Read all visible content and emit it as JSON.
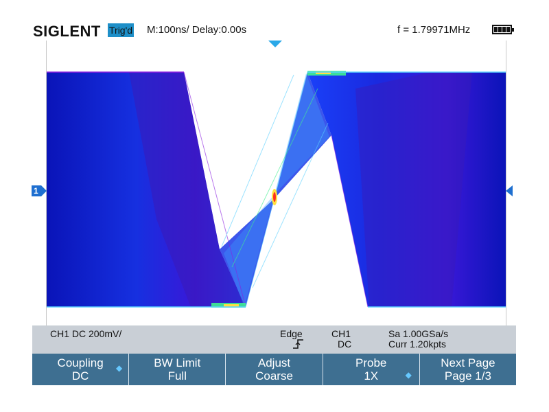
{
  "header": {
    "brand": "SIGLENT",
    "trigger_status": "Trig'd",
    "timebase": "M:100ns/ Delay:0.00s",
    "frequency": "f = 1.79971MHz"
  },
  "screen": {
    "channel_marker": "1",
    "waveform_colors": [
      "#0000a8",
      "#1a3cff",
      "#5ad0ff",
      "#40f090",
      "#ffe040",
      "#ff3020",
      "#8a1fe0"
    ]
  },
  "status_bar": {
    "channel_info": "CH1 DC 200mV/",
    "trigger_type": "Edge",
    "trigger_slope_icon": "rising-edge-icon",
    "trigger_source": "CH1",
    "trigger_coupling": "DC",
    "sample_rate": "Sa 1.00GSa/s",
    "memory_depth": "Curr 1.20kpts"
  },
  "softkeys": [
    {
      "label": "Coupling",
      "value": "DC"
    },
    {
      "label": "BW Limit",
      "value": "Full"
    },
    {
      "label": "Adjust",
      "value": "Coarse"
    },
    {
      "label": "Probe",
      "value": "1X"
    },
    {
      "label": "Next Page",
      "value": "Page 1/3"
    }
  ]
}
